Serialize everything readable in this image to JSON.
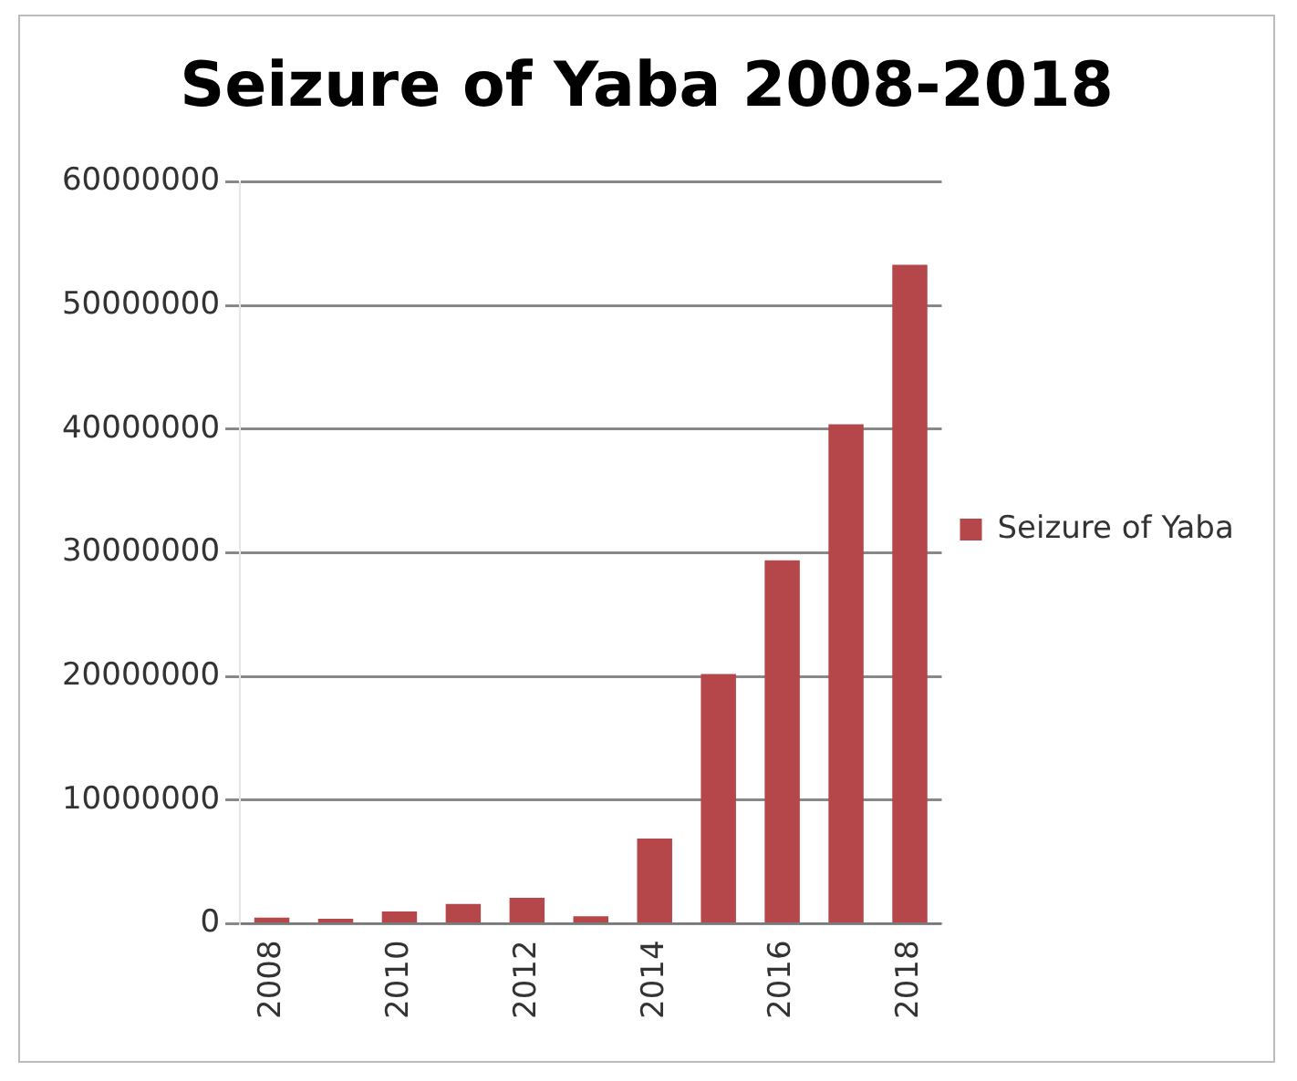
{
  "chart_data": {
    "type": "bar",
    "title": "Seizure of Yaba 2008-2018",
    "categories": [
      "2008",
      null,
      "2010",
      null,
      "2012",
      null,
      "2014",
      null,
      "2016",
      null,
      "2018"
    ],
    "series": [
      {
        "name": "Seizure of Yaba",
        "color": "#b5474a",
        "values": [
          500000,
          400000,
          1000000,
          1600000,
          2100000,
          600000,
          6900000,
          20200000,
          29400000,
          40400000,
          53300000
        ]
      }
    ],
    "ylim": [
      0,
      60000000
    ],
    "yticks": [
      0,
      10000000,
      20000000,
      30000000,
      40000000,
      50000000,
      60000000
    ],
    "grid": "y",
    "legend": "right"
  }
}
